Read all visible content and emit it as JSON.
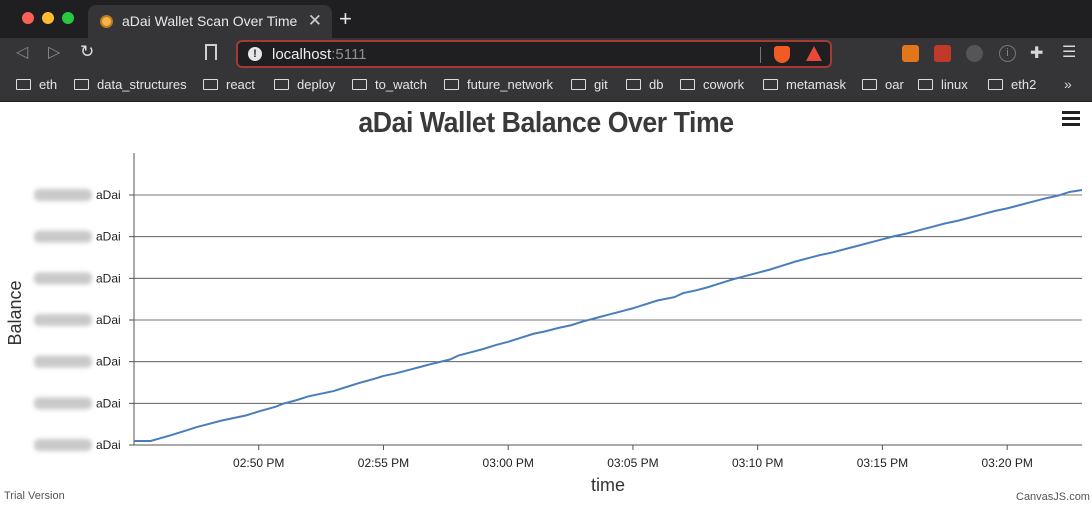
{
  "browser": {
    "tab_title": "aDai Wallet Scan Over Time",
    "url_host": "localhost",
    "url_port": ":5111",
    "bookmarks": [
      "eth",
      "data_structures",
      "react",
      "deploy",
      "to_watch",
      "future_network",
      "git",
      "db",
      "cowork",
      "metamask",
      "oar",
      "linux",
      "eth2"
    ],
    "bookmarks_overflow": "»",
    "icons": {
      "back": "back-arrow-icon",
      "forward": "forward-arrow-icon",
      "reload": "reload-icon",
      "bookmark": "bookmark-icon",
      "info": "site-info-icon",
      "brave_shield": "brave-shield-icon",
      "rewards": "brave-rewards-icon",
      "extensions": "extensions-puzzle-icon",
      "menu": "browser-menu-icon"
    }
  },
  "chart_data": {
    "type": "line",
    "title": "aDai Wallet Balance Over Time",
    "xlabel": "time",
    "ylabel": "Balance",
    "x_ticks": [
      "02:50 PM",
      "02:55 PM",
      "03:00 PM",
      "03:05 PM",
      "03:10 PM",
      "03:15 PM",
      "03:20 PM"
    ],
    "y_tick_suffix": "aDai",
    "y_tick_count": 7,
    "y_ticks_obscured": true,
    "xlim": [
      "02:45 PM",
      "03:23 PM"
    ],
    "grid": true,
    "line_color": "#4a7ebb",
    "series": [
      {
        "x": [
          "02:45:40",
          "02:46:30",
          "02:47:00",
          "02:47:30",
          "02:48:00",
          "02:48:30",
          "02:49:00",
          "02:49:30",
          "02:50:00",
          "02:50:40",
          "02:51:00",
          "02:51:30",
          "02:52:00",
          "02:52:30",
          "02:53:00",
          "02:53:30",
          "02:54:00",
          "02:54:40",
          "02:55:00",
          "02:55:30",
          "02:56:00",
          "02:56:30",
          "02:57:00",
          "02:57:40",
          "02:58:00",
          "02:58:30",
          "02:59:00",
          "02:59:30",
          "03:00:00",
          "03:00:30",
          "03:01:00",
          "03:01:30",
          "03:02:00",
          "03:02:30",
          "03:03:00",
          "03:03:30",
          "03:04:00",
          "03:04:30",
          "03:05:00",
          "03:05:30",
          "03:06:00",
          "03:06:40",
          "03:07:00",
          "03:07:30",
          "03:08:00",
          "03:08:30",
          "03:09:00",
          "03:09:30",
          "03:10:00",
          "03:10:30",
          "03:11:00",
          "03:11:30",
          "03:12:00",
          "03:12:30",
          "03:13:00",
          "03:13:30",
          "03:14:00",
          "03:14:30",
          "03:15:00",
          "03:15:30",
          "03:16:00",
          "03:16:30",
          "03:17:00",
          "03:17:30",
          "03:18:00",
          "03:18:30",
          "03:19:00",
          "03:19:30",
          "03:20:00",
          "03:20:30",
          "03:21:00",
          "03:21:30",
          "03:22:00",
          "03:22:30",
          "03:23:00"
        ],
        "values": [
          0.0,
          0.18,
          0.3,
          0.42,
          0.52,
          0.62,
          0.7,
          0.78,
          0.9,
          1.04,
          1.14,
          1.24,
          1.36,
          1.44,
          1.52,
          1.64,
          1.76,
          1.9,
          1.98,
          2.06,
          2.16,
          2.26,
          2.36,
          2.48,
          2.6,
          2.7,
          2.8,
          2.92,
          3.02,
          3.14,
          3.26,
          3.34,
          3.44,
          3.52,
          3.64,
          3.74,
          3.84,
          3.94,
          4.04,
          4.16,
          4.28,
          4.38,
          4.5,
          4.58,
          4.68,
          4.8,
          4.92,
          5.02,
          5.12,
          5.22,
          5.34,
          5.46,
          5.56,
          5.66,
          5.74,
          5.84,
          5.94,
          6.04,
          6.14,
          6.24,
          6.32,
          6.42,
          6.52,
          6.62,
          6.7,
          6.8,
          6.9,
          7.0,
          7.08,
          7.18,
          7.28,
          7.38,
          7.46,
          7.58,
          7.64
        ]
      }
    ]
  },
  "footer": {
    "left": "Trial Version",
    "right": "CanvasJS.com"
  }
}
